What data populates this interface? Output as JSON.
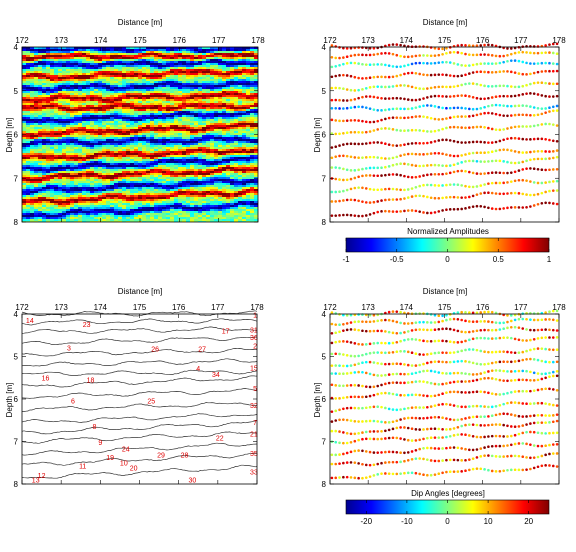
{
  "panels": {
    "p1": {
      "xlabel": "Distance [m]",
      "ylabel": "Depth [m]"
    },
    "p2": {
      "xlabel": "Distance [m]",
      "ylabel": "Depth [m]"
    },
    "p3": {
      "xlabel": "Distance [m]",
      "ylabel": "Depth [m]"
    },
    "p4": {
      "xlabel": "Distance [m]",
      "ylabel": "Depth [m]"
    }
  },
  "colorbars": {
    "amp": {
      "title": "Normalized Amplitudes",
      "ticks": [
        "-1",
        "-0.5",
        "0",
        "0.5",
        "1"
      ]
    },
    "dip": {
      "title": "Dip Angles [degrees]",
      "ticks": [
        "-20",
        "-10",
        "0",
        "10",
        "20"
      ]
    }
  },
  "chart_data": [
    {
      "type": "heatmap",
      "title": "",
      "xlabel": "Distance [m]",
      "ylabel": "Depth [m]",
      "xlim": [
        172,
        178
      ],
      "ylim": [
        8,
        4
      ],
      "xticks": [
        "172",
        "173",
        "174",
        "175",
        "176",
        "177",
        "178"
      ],
      "yticks": [
        "4",
        "5",
        "6",
        "7",
        "8"
      ],
      "colormap": "jet",
      "reflectors": [
        {
          "depth_start": 4.05,
          "depth_end": 4.05,
          "sign": -1
        },
        {
          "depth_start": 4.22,
          "depth_end": 4.2,
          "sign": 1
        },
        {
          "depth_start": 4.42,
          "depth_end": 4.35,
          "sign": -1
        },
        {
          "depth_start": 4.7,
          "depth_end": 4.55,
          "sign": 1
        },
        {
          "depth_start": 4.95,
          "depth_end": 4.85,
          "sign": -1
        },
        {
          "depth_start": 5.2,
          "depth_end": 5.1,
          "sign": 1
        },
        {
          "depth_start": 5.4,
          "depth_end": 5.35,
          "sign": 1
        },
        {
          "depth_start": 5.7,
          "depth_end": 5.5,
          "sign": -1
        },
        {
          "depth_start": 6.0,
          "depth_end": 5.8,
          "sign": 1
        },
        {
          "depth_start": 6.2,
          "depth_end": 6.1,
          "sign": -1
        },
        {
          "depth_start": 6.55,
          "depth_end": 6.35,
          "sign": 1
        },
        {
          "depth_start": 6.8,
          "depth_end": 6.55,
          "sign": -1
        },
        {
          "depth_start": 7.0,
          "depth_end": 6.8,
          "sign": 1
        },
        {
          "depth_start": 7.3,
          "depth_end": 7.05,
          "sign": -1
        },
        {
          "depth_start": 7.55,
          "depth_end": 7.3,
          "sign": 1
        },
        {
          "depth_start": 7.85,
          "depth_end": 7.6,
          "sign": -1
        }
      ]
    },
    {
      "type": "scatter",
      "title": "",
      "xlabel": "Distance [m]",
      "ylabel": "Depth [m]",
      "xlim": [
        172,
        178
      ],
      "ylim": [
        8,
        4
      ],
      "xticks": [
        "172",
        "173",
        "174",
        "175",
        "176",
        "177",
        "178"
      ],
      "yticks": [
        "4",
        "5",
        "6",
        "7",
        "8"
      ],
      "colorbar": {
        "label": "Normalized Amplitudes",
        "range": [
          -1,
          1
        ],
        "colormap": "jet"
      },
      "horizons": [
        {
          "depth_start": 4.0,
          "depth_end": 3.98,
          "amplitude": 0.8
        },
        {
          "depth_start": 4.2,
          "depth_end": 4.15,
          "amplitude": 0.5
        },
        {
          "depth_start": 4.42,
          "depth_end": 4.35,
          "amplitude": -0.2
        },
        {
          "depth_start": 4.7,
          "depth_end": 4.55,
          "amplitude": 0.7
        },
        {
          "depth_start": 4.95,
          "depth_end": 4.85,
          "amplitude": 0.2
        },
        {
          "depth_start": 5.2,
          "depth_end": 5.1,
          "amplitude": 0.9
        },
        {
          "depth_start": 5.42,
          "depth_end": 5.35,
          "amplitude": -0.3
        },
        {
          "depth_start": 5.7,
          "depth_end": 5.5,
          "amplitude": 0.6
        },
        {
          "depth_start": 5.95,
          "depth_end": 5.8,
          "amplitude": 0.3
        },
        {
          "depth_start": 6.25,
          "depth_end": 6.1,
          "amplitude": 0.95
        },
        {
          "depth_start": 6.55,
          "depth_end": 6.35,
          "amplitude": 0.4
        },
        {
          "depth_start": 6.8,
          "depth_end": 6.55,
          "amplitude": 0.1
        },
        {
          "depth_start": 7.0,
          "depth_end": 6.8,
          "amplitude": 0.75
        },
        {
          "depth_start": 7.3,
          "depth_end": 7.05,
          "amplitude": 0.25
        },
        {
          "depth_start": 7.55,
          "depth_end": 7.3,
          "amplitude": 0.55
        },
        {
          "depth_start": 7.85,
          "depth_end": 7.6,
          "amplitude": 0.9
        }
      ]
    },
    {
      "type": "line",
      "title": "",
      "xlabel": "Distance [m]",
      "ylabel": "Depth [m]",
      "xlim": [
        172,
        178
      ],
      "ylim": [
        8,
        4
      ],
      "xticks": [
        "172",
        "173",
        "174",
        "175",
        "176",
        "177",
        "178"
      ],
      "yticks": [
        "4",
        "5",
        "6",
        "7",
        "8"
      ],
      "horizons": [
        {
          "depth_start": 4.0,
          "depth_end": 3.98
        },
        {
          "depth_start": 4.2,
          "depth_end": 4.15
        },
        {
          "depth_start": 4.42,
          "depth_end": 4.35
        },
        {
          "depth_start": 4.7,
          "depth_end": 4.55
        },
        {
          "depth_start": 4.95,
          "depth_end": 4.85
        },
        {
          "depth_start": 5.2,
          "depth_end": 5.1
        },
        {
          "depth_start": 5.42,
          "depth_end": 5.35
        },
        {
          "depth_start": 5.7,
          "depth_end": 5.5
        },
        {
          "depth_start": 5.95,
          "depth_end": 5.8
        },
        {
          "depth_start": 6.25,
          "depth_end": 6.1
        },
        {
          "depth_start": 6.55,
          "depth_end": 6.35
        },
        {
          "depth_start": 6.8,
          "depth_end": 6.55
        },
        {
          "depth_start": 7.0,
          "depth_end": 6.8
        },
        {
          "depth_start": 7.3,
          "depth_end": 7.05
        },
        {
          "depth_start": 7.55,
          "depth_end": 7.3
        },
        {
          "depth_start": 7.85,
          "depth_end": 7.6
        }
      ],
      "annotations": [
        {
          "text": "14",
          "x": 172.2,
          "y": 4.15
        },
        {
          "text": "23",
          "x": 173.65,
          "y": 4.25
        },
        {
          "text": "1",
          "x": 177.95,
          "y": 4.02
        },
        {
          "text": "17",
          "x": 177.2,
          "y": 4.4
        },
        {
          "text": "31",
          "x": 177.92,
          "y": 4.38
        },
        {
          "text": "36",
          "x": 177.92,
          "y": 4.55
        },
        {
          "text": "2",
          "x": 177.95,
          "y": 4.75
        },
        {
          "text": "3",
          "x": 173.2,
          "y": 4.8
        },
        {
          "text": "26",
          "x": 175.4,
          "y": 4.82
        },
        {
          "text": "27",
          "x": 176.6,
          "y": 4.82
        },
        {
          "text": "15",
          "x": 177.92,
          "y": 5.27
        },
        {
          "text": "4",
          "x": 176.5,
          "y": 5.28
        },
        {
          "text": "34",
          "x": 176.95,
          "y": 5.42
        },
        {
          "text": "16",
          "x": 172.6,
          "y": 5.5
        },
        {
          "text": "18",
          "x": 173.75,
          "y": 5.55
        },
        {
          "text": "5",
          "x": 177.95,
          "y": 5.75
        },
        {
          "text": "6",
          "x": 173.3,
          "y": 6.05
        },
        {
          "text": "25",
          "x": 175.3,
          "y": 6.05
        },
        {
          "text": "32",
          "x": 177.92,
          "y": 6.15
        },
        {
          "text": "7",
          "x": 177.95,
          "y": 6.55
        },
        {
          "text": "8",
          "x": 173.85,
          "y": 6.65
        },
        {
          "text": "21",
          "x": 177.92,
          "y": 6.82
        },
        {
          "text": "22",
          "x": 177.05,
          "y": 6.92
        },
        {
          "text": "9",
          "x": 174.0,
          "y": 7.02
        },
        {
          "text": "24",
          "x": 174.65,
          "y": 7.18
        },
        {
          "text": "28",
          "x": 176.15,
          "y": 7.32
        },
        {
          "text": "29",
          "x": 175.55,
          "y": 7.32
        },
        {
          "text": "19",
          "x": 174.25,
          "y": 7.38
        },
        {
          "text": "35",
          "x": 177.92,
          "y": 7.28
        },
        {
          "text": "10",
          "x": 174.6,
          "y": 7.5
        },
        {
          "text": "11",
          "x": 173.55,
          "y": 7.58
        },
        {
          "text": "20",
          "x": 174.85,
          "y": 7.62
        },
        {
          "text": "12",
          "x": 172.5,
          "y": 7.8
        },
        {
          "text": "33",
          "x": 177.92,
          "y": 7.72
        },
        {
          "text": "13",
          "x": 172.35,
          "y": 7.9
        },
        {
          "text": "30",
          "x": 176.35,
          "y": 7.9
        }
      ]
    },
    {
      "type": "scatter",
      "title": "",
      "xlabel": "Distance [m]",
      "ylabel": "Depth [m]",
      "xlim": [
        172,
        178
      ],
      "ylim": [
        8,
        4
      ],
      "xticks": [
        "172",
        "173",
        "174",
        "175",
        "176",
        "177",
        "178"
      ],
      "yticks": [
        "4",
        "5",
        "6",
        "7",
        "8"
      ],
      "colorbar": {
        "label": "Dip Angles [degrees]",
        "range": [
          -25,
          25
        ],
        "colormap": "jet"
      },
      "horizons": [
        {
          "depth_start": 4.0,
          "depth_end": 3.98,
          "dip": 5
        },
        {
          "depth_start": 4.2,
          "depth_end": 4.15,
          "dip": 8
        },
        {
          "depth_start": 4.42,
          "depth_end": 4.35,
          "dip": 12
        },
        {
          "depth_start": 4.7,
          "depth_end": 4.55,
          "dip": 10
        },
        {
          "depth_start": 4.95,
          "depth_end": 4.85,
          "dip": 6
        },
        {
          "depth_start": 5.2,
          "depth_end": 5.1,
          "dip": 9
        },
        {
          "depth_start": 5.42,
          "depth_end": 5.35,
          "dip": 4
        },
        {
          "depth_start": 5.7,
          "depth_end": 5.5,
          "dip": 14
        },
        {
          "depth_start": 5.95,
          "depth_end": 5.8,
          "dip": 11
        },
        {
          "depth_start": 6.25,
          "depth_end": 6.1,
          "dip": 7
        },
        {
          "depth_start": 6.55,
          "depth_end": 6.35,
          "dip": 13
        },
        {
          "depth_start": 6.8,
          "depth_end": 6.55,
          "dip": 15
        },
        {
          "depth_start": 7.0,
          "depth_end": 6.8,
          "dip": 12
        },
        {
          "depth_start": 7.3,
          "depth_end": 7.05,
          "dip": 16
        },
        {
          "depth_start": 7.55,
          "depth_end": 7.3,
          "dip": 13
        },
        {
          "depth_start": 7.85,
          "depth_end": 7.6,
          "dip": 10
        }
      ]
    }
  ]
}
